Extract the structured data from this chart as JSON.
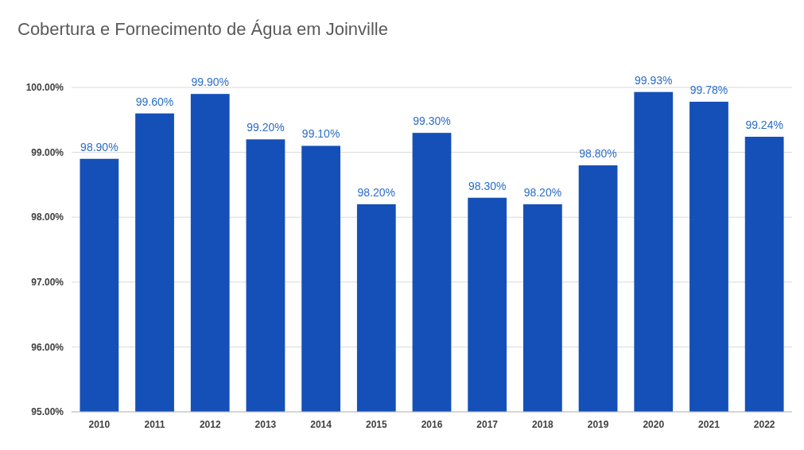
{
  "chart_data": {
    "type": "bar",
    "title": "Cobertura e Fornecimento de Água em Joinville",
    "categories": [
      "2010",
      "2011",
      "2012",
      "2013",
      "2014",
      "2015",
      "2016",
      "2017",
      "2018",
      "2019",
      "2020",
      "2021",
      "2022"
    ],
    "values": [
      98.9,
      99.6,
      99.9,
      99.2,
      99.1,
      98.2,
      99.3,
      98.3,
      98.2,
      98.8,
      99.93,
      99.78,
      99.24
    ],
    "value_labels": [
      "98.90%",
      "99.60%",
      "99.90%",
      "99.20%",
      "99.10%",
      "98.20%",
      "99.30%",
      "98.30%",
      "98.20%",
      "98.80%",
      "99.93%",
      "99.78%",
      "99.24%"
    ],
    "color": "#1550b8",
    "ylim": [
      95,
      100
    ],
    "yticks": [
      {
        "value": 95,
        "label": "95.00%"
      },
      {
        "value": 96,
        "label": "96.00%"
      },
      {
        "value": 97,
        "label": "97.00%"
      },
      {
        "value": 98,
        "label": "98.00%"
      },
      {
        "value": 99,
        "label": "99.00%"
      },
      {
        "value": 100,
        "label": "100.00%"
      }
    ],
    "grid": "y"
  }
}
